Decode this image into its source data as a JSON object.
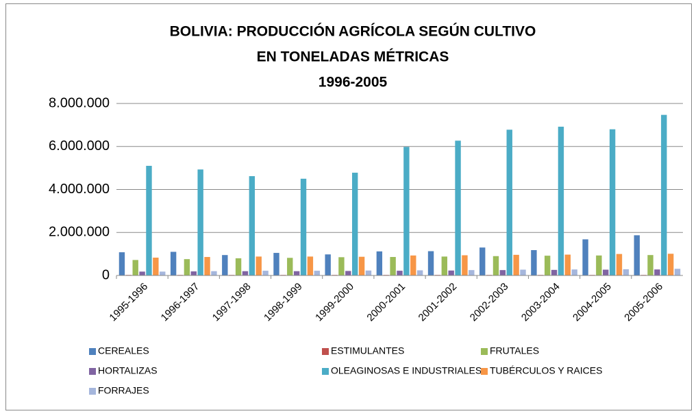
{
  "chart_data": {
    "type": "bar",
    "title": [
      "BOLIVIA: PRODUCCIÓN AGRÍCOLA SEGÚN CULTIVO",
      "EN TONELADAS MÉTRICAS",
      "1996-2005"
    ],
    "categories": [
      "1995-1996",
      "1996-1997",
      "1997-1998",
      "1998-1999",
      "1999-2000",
      "2000-2001",
      "2001-2002",
      "2002-2003",
      "2003-2004",
      "2004-2005",
      "2005-2006"
    ],
    "series": [
      {
        "name": "CEREALES",
        "color": "#4f81bd",
        "values": [
          1080000,
          1100000,
          950000,
          1050000,
          980000,
          1120000,
          1130000,
          1300000,
          1180000,
          1680000,
          1870000
        ]
      },
      {
        "name": "ESTIMULANTES",
        "color": "#c0504d",
        "values": [
          25000,
          25000,
          25000,
          25000,
          25000,
          25000,
          25000,
          25000,
          25000,
          25000,
          25000
        ]
      },
      {
        "name": "FRUTALES",
        "color": "#9bbb59",
        "values": [
          720000,
          760000,
          800000,
          820000,
          850000,
          860000,
          880000,
          900000,
          920000,
          930000,
          950000
        ]
      },
      {
        "name": "HORTALIZAS",
        "color": "#8064a2",
        "values": [
          180000,
          190000,
          200000,
          200000,
          210000,
          220000,
          230000,
          250000,
          260000,
          270000,
          280000
        ]
      },
      {
        "name": "OLEAGINOSAS E INDUSTRIALES",
        "color": "#4bacc6",
        "values": [
          5100000,
          4930000,
          4620000,
          4500000,
          4780000,
          5980000,
          6270000,
          6780000,
          6920000,
          6800000,
          7470000
        ]
      },
      {
        "name": "TUBÉRCULOS Y RAICES",
        "color": "#f79646",
        "values": [
          830000,
          860000,
          880000,
          880000,
          870000,
          930000,
          940000,
          960000,
          970000,
          1000000,
          1010000
        ]
      },
      {
        "name": "FORRAJES",
        "color": "#a5b6dc",
        "values": [
          180000,
          200000,
          220000,
          220000,
          230000,
          240000,
          250000,
          270000,
          280000,
          290000,
          310000
        ]
      }
    ],
    "ylim": [
      0,
      8000000
    ],
    "yticks": [
      0,
      {
        "value": 2000000,
        "label": "2.000.000"
      },
      {
        "value": 4000000,
        "label": "4.000.000"
      },
      {
        "value": 6000000,
        "label": "6.000.000"
      },
      {
        "value": 8000000,
        "label": "8.000.000"
      }
    ],
    "grid": true
  }
}
